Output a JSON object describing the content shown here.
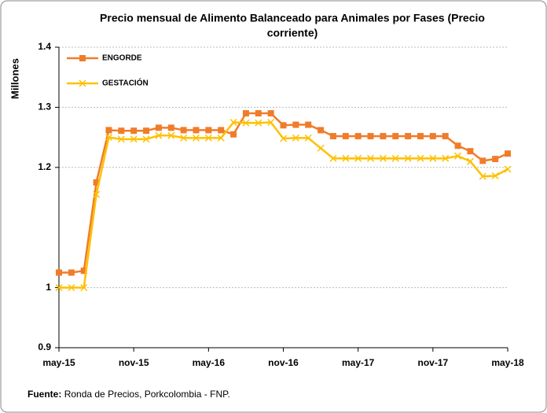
{
  "chart_data": {
    "type": "line",
    "title": [
      "Precio mensual de Alimento Balanceado para Animales por Fases (Precio",
      "corriente)"
    ],
    "y_label": "Millones",
    "categories": [
      "may-15",
      null,
      null,
      null,
      null,
      null,
      "nov-15",
      null,
      null,
      null,
      null,
      null,
      "may-16",
      null,
      null,
      null,
      null,
      null,
      "nov-16",
      null,
      null,
      null,
      null,
      null,
      "may-17",
      null,
      null,
      null,
      null,
      null,
      "nov-17",
      null,
      null,
      null,
      null,
      null,
      "may-18"
    ],
    "series": [
      {
        "name": "ENGORDE",
        "color": "#f07c2a",
        "marker": "square",
        "values": [
          1.025,
          1.025,
          1.028,
          1.175,
          1.262,
          1.261,
          1.261,
          1.261,
          1.266,
          1.266,
          1.262,
          1.262,
          1.262,
          1.262,
          1.255,
          1.29,
          1.29,
          1.29,
          1.27,
          1.271,
          1.271,
          1.262,
          1.252,
          1.252,
          1.252,
          1.252,
          1.252,
          1.252,
          1.252,
          1.252,
          1.252,
          1.252,
          1.236,
          1.227,
          1.211,
          1.214,
          1.223
        ]
      },
      {
        "name": "GESTACIÓN",
        "color": "#ffc000",
        "marker": "x",
        "values": [
          1.0,
          1.0,
          1.0,
          1.155,
          1.25,
          1.247,
          1.247,
          1.247,
          1.253,
          1.253,
          1.249,
          1.249,
          1.249,
          1.249,
          1.275,
          1.274,
          1.274,
          1.275,
          1.248,
          1.249,
          1.249,
          1.232,
          1.215,
          1.215,
          1.215,
          1.215,
          1.215,
          1.215,
          1.215,
          1.215,
          1.215,
          1.215,
          1.219,
          1.21,
          1.185,
          1.186,
          1.197
        ]
      }
    ],
    "ylim": [
      0.9,
      1.4
    ],
    "yticks": [
      0.9,
      1.0,
      1.2,
      1.3,
      1.4
    ],
    "grid": true,
    "legend": "upper left"
  },
  "footer": {
    "label": "Fuente:",
    "text": "Ronda de Precios, Porkcolombia  - FNP."
  }
}
